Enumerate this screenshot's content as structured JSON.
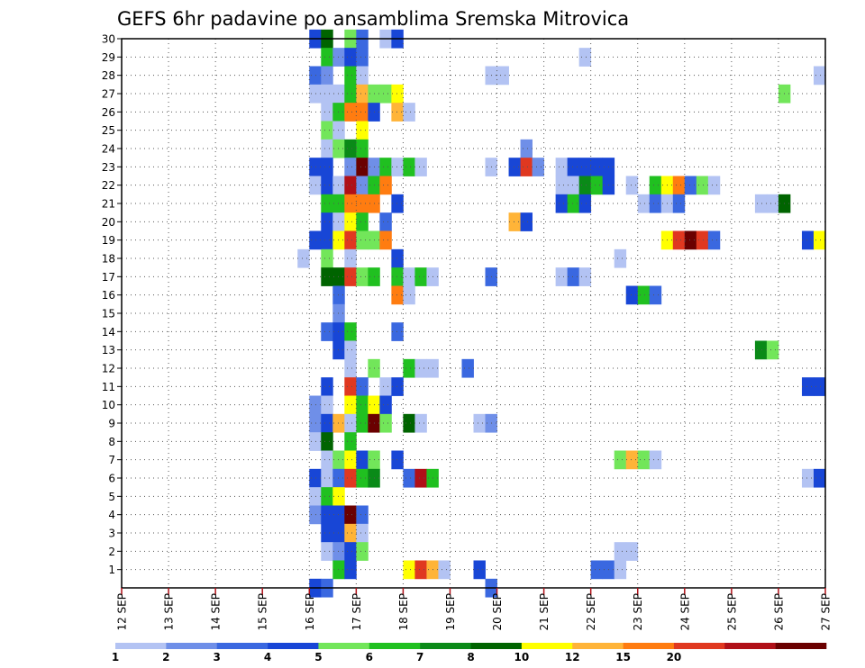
{
  "chart_data": {
    "type": "heatmap",
    "title": "GEFS 6hr padavine po ansamblima Sremska Mitrovica",
    "xlabel": "",
    "ylabel": "",
    "x_ticks": [
      "12 SEP",
      "13 SEP",
      "14 SEP",
      "15 SEP",
      "16 SEP",
      "17 SEP",
      "18 SEP",
      "19 SEP",
      "20 SEP",
      "21 SEP",
      "22 SEP",
      "23 SEP",
      "24 SEP",
      "25 SEP",
      "26 SEP",
      "27 SEP"
    ],
    "xlim_days": [
      12,
      27
    ],
    "members": [
      "1",
      "2",
      "3",
      "4",
      "5",
      "6",
      "7",
      "8",
      "9",
      "10",
      "11",
      "12",
      "13",
      "14",
      "15",
      "16",
      "17",
      "18",
      "19",
      "20",
      "21",
      "22",
      "23",
      "24",
      "25",
      "26",
      "27",
      "28",
      "29",
      "30"
    ],
    "ylim": [
      0,
      30
    ],
    "grid": true,
    "colorbar": {
      "labels": [
        "1",
        "2",
        "3",
        "4",
        "5",
        "6",
        "7",
        "8",
        "10",
        "12",
        "15",
        "20"
      ],
      "colors": [
        "#b3c3f3",
        "#6f8fe8",
        "#3a68e0",
        "#1846d6",
        "#72e65a",
        "#20c020",
        "#0a8a18",
        "#006400",
        "#ffff00",
        "#ffb438",
        "#ff7c10",
        "#e03820",
        "#b01018",
        "#6a0000"
      ]
    },
    "cells_note": "each cell = [member, day-of-September at start of 6h step, colorbar class index 0-13]",
    "cells": [
      [
        30,
        16.0,
        3
      ],
      [
        30,
        16.25,
        7
      ],
      [
        30,
        16.75,
        4
      ],
      [
        30,
        17.0,
        2
      ],
      [
        30,
        17.5,
        0
      ],
      [
        30,
        17.75,
        3
      ],
      [
        29,
        16.25,
        5
      ],
      [
        29,
        16.5,
        1
      ],
      [
        29,
        16.75,
        3
      ],
      [
        29,
        17.0,
        2
      ],
      [
        29,
        21.75,
        0
      ],
      [
        28,
        16.0,
        2
      ],
      [
        28,
        16.25,
        1
      ],
      [
        28,
        16.75,
        5
      ],
      [
        28,
        17.0,
        0
      ],
      [
        28,
        19.75,
        0
      ],
      [
        28,
        20.0,
        0
      ],
      [
        28,
        26.75,
        0
      ],
      [
        27,
        16.0,
        0
      ],
      [
        27,
        16.25,
        0
      ],
      [
        27,
        16.5,
        0
      ],
      [
        27,
        16.75,
        5
      ],
      [
        27,
        17.0,
        9
      ],
      [
        27,
        17.25,
        4
      ],
      [
        27,
        17.5,
        4
      ],
      [
        27,
        17.75,
        8
      ],
      [
        27,
        26.0,
        4
      ],
      [
        26,
        16.25,
        0
      ],
      [
        26,
        16.5,
        5
      ],
      [
        26,
        16.75,
        10
      ],
      [
        26,
        17.0,
        10
      ],
      [
        26,
        17.25,
        3
      ],
      [
        26,
        17.75,
        9
      ],
      [
        26,
        18.0,
        0
      ],
      [
        25,
        16.25,
        4
      ],
      [
        25,
        16.5,
        0
      ],
      [
        25,
        17.0,
        8
      ],
      [
        24,
        16.25,
        0
      ],
      [
        24,
        16.5,
        4
      ],
      [
        24,
        16.75,
        6
      ],
      [
        24,
        17.0,
        5
      ],
      [
        24,
        20.5,
        1
      ],
      [
        23,
        16.0,
        3
      ],
      [
        23,
        16.25,
        3
      ],
      [
        23,
        16.75,
        1
      ],
      [
        23,
        17.0,
        13
      ],
      [
        23,
        17.25,
        1
      ],
      [
        23,
        17.5,
        5
      ],
      [
        23,
        17.75,
        0
      ],
      [
        23,
        18.0,
        5
      ],
      [
        23,
        18.25,
        0
      ],
      [
        23,
        19.75,
        0
      ],
      [
        23,
        20.25,
        3
      ],
      [
        23,
        20.5,
        11
      ],
      [
        23,
        20.75,
        1
      ],
      [
        23,
        21.25,
        0
      ],
      [
        23,
        21.5,
        3
      ],
      [
        23,
        21.75,
        3
      ],
      [
        23,
        22.0,
        3
      ],
      [
        23,
        22.25,
        3
      ],
      [
        22,
        16.0,
        0
      ],
      [
        22,
        16.25,
        3
      ],
      [
        22,
        16.5,
        0
      ],
      [
        22,
        16.75,
        12
      ],
      [
        22,
        17.0,
        1
      ],
      [
        22,
        17.25,
        5
      ],
      [
        22,
        17.5,
        10
      ],
      [
        22,
        21.25,
        0
      ],
      [
        22,
        21.5,
        0
      ],
      [
        22,
        21.75,
        6
      ],
      [
        22,
        22.0,
        5
      ],
      [
        22,
        22.25,
        3
      ],
      [
        22,
        22.75,
        0
      ],
      [
        22,
        23.25,
        5
      ],
      [
        22,
        23.5,
        8
      ],
      [
        22,
        23.75,
        10
      ],
      [
        22,
        24.0,
        2
      ],
      [
        22,
        24.25,
        4
      ],
      [
        22,
        24.5,
        0
      ],
      [
        21,
        16.25,
        5
      ],
      [
        21,
        16.5,
        5
      ],
      [
        21,
        16.75,
        10
      ],
      [
        21,
        17.0,
        10
      ],
      [
        21,
        17.25,
        10
      ],
      [
        21,
        17.75,
        3
      ],
      [
        21,
        21.25,
        3
      ],
      [
        21,
        21.5,
        5
      ],
      [
        21,
        21.75,
        3
      ],
      [
        21,
        23.0,
        0
      ],
      [
        21,
        23.25,
        2
      ],
      [
        21,
        23.5,
        0
      ],
      [
        21,
        23.75,
        2
      ],
      [
        21,
        25.5,
        0
      ],
      [
        21,
        25.75,
        0
      ],
      [
        21,
        26.0,
        7
      ],
      [
        20,
        16.25,
        3
      ],
      [
        20,
        16.5,
        0
      ],
      [
        20,
        16.75,
        8
      ],
      [
        20,
        17.0,
        5
      ],
      [
        20,
        17.5,
        2
      ],
      [
        20,
        20.25,
        9
      ],
      [
        20,
        20.5,
        3
      ],
      [
        19,
        16.0,
        3
      ],
      [
        19,
        16.25,
        3
      ],
      [
        19,
        16.5,
        8
      ],
      [
        19,
        16.75,
        11
      ],
      [
        19,
        17.0,
        4
      ],
      [
        19,
        17.25,
        4
      ],
      [
        19,
        17.5,
        10
      ],
      [
        19,
        23.5,
        8
      ],
      [
        19,
        23.75,
        11
      ],
      [
        19,
        24.0,
        13
      ],
      [
        19,
        24.25,
        11
      ],
      [
        19,
        24.5,
        2
      ],
      [
        19,
        26.5,
        3
      ],
      [
        19,
        26.75,
        8
      ],
      [
        18,
        15.75,
        0
      ],
      [
        18,
        16.25,
        4
      ],
      [
        18,
        16.75,
        0
      ],
      [
        18,
        17.75,
        3
      ],
      [
        18,
        22.5,
        0
      ],
      [
        17,
        16.25,
        7
      ],
      [
        17,
        16.5,
        7
      ],
      [
        17,
        16.75,
        11
      ],
      [
        17,
        17.0,
        4
      ],
      [
        17,
        17.25,
        5
      ],
      [
        17,
        17.75,
        5
      ],
      [
        17,
        18.0,
        0
      ],
      [
        17,
        18.25,
        5
      ],
      [
        17,
        18.5,
        0
      ],
      [
        17,
        19.75,
        2
      ],
      [
        17,
        21.25,
        0
      ],
      [
        17,
        21.5,
        2
      ],
      [
        17,
        21.75,
        0
      ],
      [
        16,
        16.5,
        2
      ],
      [
        16,
        17.75,
        10
      ],
      [
        16,
        18.0,
        0
      ],
      [
        16,
        22.75,
        3
      ],
      [
        16,
        23.0,
        5
      ],
      [
        16,
        23.25,
        2
      ],
      [
        15,
        16.5,
        1
      ],
      [
        14,
        16.25,
        2
      ],
      [
        14,
        16.5,
        3
      ],
      [
        14,
        16.75,
        5
      ],
      [
        14,
        17.75,
        2
      ],
      [
        13,
        16.5,
        3
      ],
      [
        13,
        16.75,
        0
      ],
      [
        13,
        25.5,
        6
      ],
      [
        13,
        25.75,
        4
      ],
      [
        12,
        16.75,
        0
      ],
      [
        12,
        17.25,
        4
      ],
      [
        12,
        18.0,
        5
      ],
      [
        12,
        18.25,
        0
      ],
      [
        12,
        18.5,
        0
      ],
      [
        12,
        19.25,
        2
      ],
      [
        11,
        16.25,
        3
      ],
      [
        11,
        16.75,
        11
      ],
      [
        11,
        17.0,
        2
      ],
      [
        11,
        17.5,
        0
      ],
      [
        11,
        17.75,
        3
      ],
      [
        11,
        26.5,
        3
      ],
      [
        11,
        26.75,
        3
      ],
      [
        10,
        16.0,
        1
      ],
      [
        10,
        16.25,
        0
      ],
      [
        10,
        16.75,
        8
      ],
      [
        10,
        17.0,
        5
      ],
      [
        10,
        17.25,
        8
      ],
      [
        10,
        17.5,
        3
      ],
      [
        9,
        16.0,
        1
      ],
      [
        9,
        16.25,
        3
      ],
      [
        9,
        16.5,
        9
      ],
      [
        9,
        16.75,
        0
      ],
      [
        9,
        17.0,
        5
      ],
      [
        9,
        17.25,
        13
      ],
      [
        9,
        17.5,
        4
      ],
      [
        9,
        18.0,
        7
      ],
      [
        9,
        18.25,
        0
      ],
      [
        9,
        19.5,
        0
      ],
      [
        9,
        19.75,
        1
      ],
      [
        8,
        16.0,
        0
      ],
      [
        8,
        16.25,
        7
      ],
      [
        8,
        16.75,
        5
      ],
      [
        7,
        16.25,
        0
      ],
      [
        7,
        16.5,
        4
      ],
      [
        7,
        16.75,
        8
      ],
      [
        7,
        17.0,
        3
      ],
      [
        7,
        17.25,
        4
      ],
      [
        7,
        17.75,
        3
      ],
      [
        7,
        22.5,
        4
      ],
      [
        7,
        22.75,
        9
      ],
      [
        7,
        23.0,
        4
      ],
      [
        7,
        23.25,
        0
      ],
      [
        6,
        16.0,
        3
      ],
      [
        6,
        16.25,
        0
      ],
      [
        6,
        16.5,
        2
      ],
      [
        6,
        16.75,
        11
      ],
      [
        6,
        17.0,
        5
      ],
      [
        6,
        17.25,
        6
      ],
      [
        6,
        18.0,
        2
      ],
      [
        6,
        18.25,
        12
      ],
      [
        6,
        18.5,
        5
      ],
      [
        6,
        26.5,
        0
      ],
      [
        6,
        26.75,
        3
      ],
      [
        5,
        16.0,
        0
      ],
      [
        5,
        16.25,
        5
      ],
      [
        5,
        16.5,
        8
      ],
      [
        4,
        16.0,
        1
      ],
      [
        4,
        16.25,
        3
      ],
      [
        4,
        16.5,
        3
      ],
      [
        4,
        16.75,
        13
      ],
      [
        4,
        17.0,
        2
      ],
      [
        3,
        16.25,
        3
      ],
      [
        3,
        16.5,
        3
      ],
      [
        3,
        16.75,
        9
      ],
      [
        3,
        17.0,
        0
      ],
      [
        2,
        16.25,
        0
      ],
      [
        2,
        16.5,
        1
      ],
      [
        2,
        16.75,
        3
      ],
      [
        2,
        17.0,
        4
      ],
      [
        2,
        22.5,
        0
      ],
      [
        2,
        22.75,
        0
      ],
      [
        1,
        16.5,
        5
      ],
      [
        1,
        16.75,
        3
      ],
      [
        1,
        18.0,
        8
      ],
      [
        1,
        18.25,
        11
      ],
      [
        1,
        18.5,
        9
      ],
      [
        1,
        18.75,
        0
      ],
      [
        1,
        19.5,
        3
      ],
      [
        1,
        22.0,
        2
      ],
      [
        1,
        22.25,
        2
      ],
      [
        1,
        22.5,
        0
      ],
      [
        0,
        16.0,
        3
      ],
      [
        0,
        16.25,
        2
      ],
      [
        0,
        19.75,
        2
      ]
    ]
  }
}
